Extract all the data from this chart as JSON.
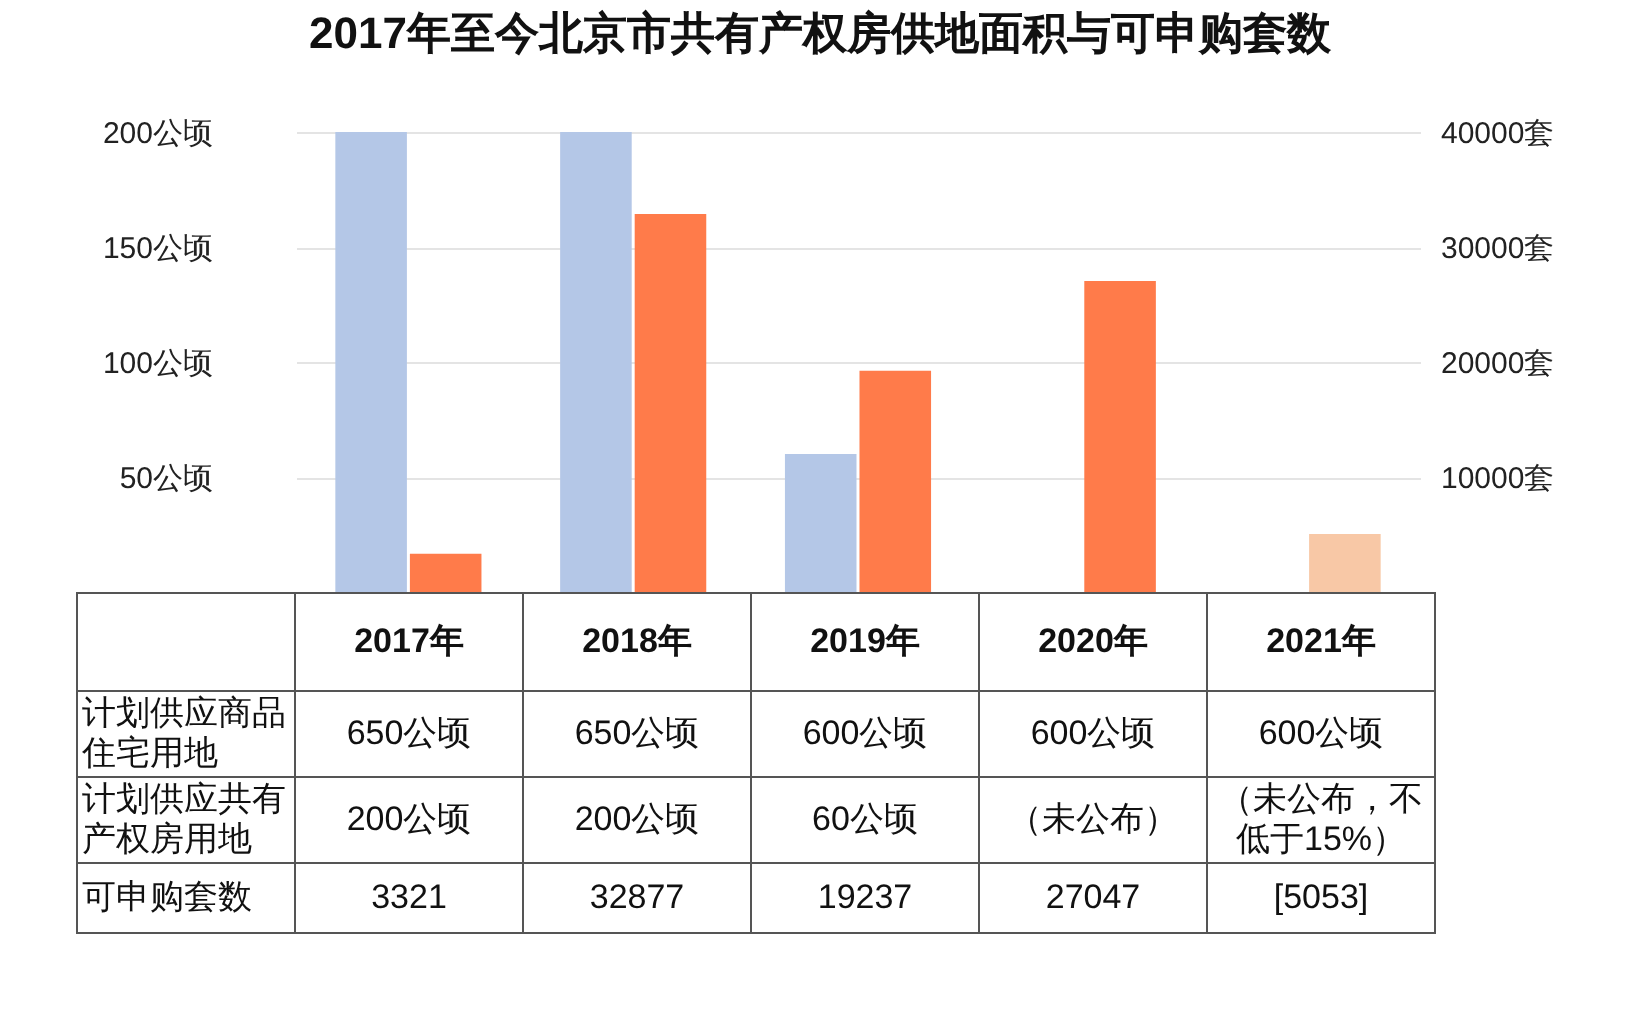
{
  "chart_data": {
    "type": "bar",
    "title": "2017年至今北京市共有产权房供地面积与可申购套数",
    "categories": [
      "2017年",
      "2018年",
      "2019年",
      "2020年",
      "2021年"
    ],
    "series": [
      {
        "color": "#b4c7e7",
        "values": [
          200,
          200,
          60,
          null,
          null
        ],
        "value_labels": [
          "200公顷",
          "200公顷",
          "60公顷",
          "（未公布）",
          "（未公布，不低于15%）"
        ]
      },
      {
        "colors": [
          "#ff7b4a",
          "#ff7b4a",
          "#ff7b4a",
          "#ff7b4a",
          "#f8c8a6"
        ],
        "values": [
          3321,
          32877,
          19237,
          27047,
          5053
        ],
        "axis": "y2",
        "value_labels": [
          "3321",
          "32877",
          "19237",
          "27047",
          "[5053]"
        ]
      }
    ],
    "ylim": [
      0,
      200
    ],
    "yticks": [
      {
        "value": 50,
        "label": "50公顷"
      },
      {
        "value": 100,
        "label": "100公顷"
      },
      {
        "value": 150,
        "label": "150公顷"
      },
      {
        "value": 200,
        "label": "200公顷"
      }
    ],
    "y2lim": [
      0,
      40000
    ],
    "y2ticks": [
      {
        "value": 10000,
        "label": "10000套"
      },
      {
        "value": 20000,
        "label": "20000套"
      },
      {
        "value": 30000,
        "label": "30000套"
      },
      {
        "value": 40000,
        "label": "40000套"
      }
    ],
    "grid": "y",
    "annotations": [
      "计划供应商品住宅用地",
      "650公顷",
      "650公顷",
      "600公顷",
      "600公顷",
      "600公顷",
      "计划供应共有产权房用地",
      "可申购套数"
    ]
  }
}
